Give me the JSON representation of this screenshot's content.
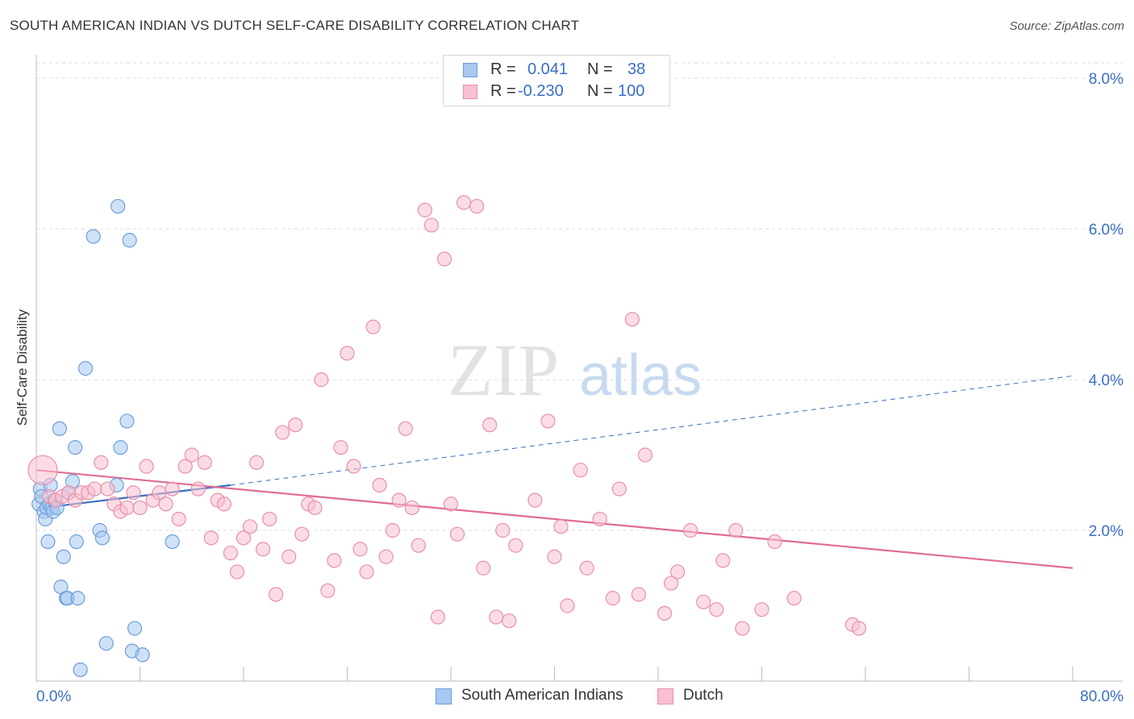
{
  "title": "SOUTH AMERICAN INDIAN VS DUTCH SELF-CARE DISABILITY CORRELATION CHART",
  "source": "Source: ZipAtlas.com",
  "watermark": {
    "zip": "ZIP",
    "atlas": "atlas"
  },
  "legend": {
    "rows": [
      {
        "r_label": "R =",
        "r_value": "0.041",
        "n_label": "N =",
        "n_value": "38",
        "color": "#a8c8f0",
        "border": "#6e9fd8"
      },
      {
        "r_label": "R =",
        "r_value": "-0.230",
        "n_label": "N =",
        "n_value": "100",
        "color": "#f8c0d0",
        "border": "#e890aa"
      }
    ]
  },
  "bottom_legend": [
    {
      "label": "South American Indians",
      "color": "#a8c8f0",
      "border": "#6e9fd8"
    },
    {
      "label": "Dutch",
      "color": "#f8c0d0",
      "border": "#e890aa"
    }
  ],
  "chart_data": {
    "type": "scatter",
    "title": "SOUTH AMERICAN INDIAN VS DUTCH SELF-CARE DISABILITY CORRELATION CHART",
    "xlabel": "",
    "ylabel": "Self-Care Disability",
    "xlim": [
      0,
      80
    ],
    "ylim": [
      0,
      8.2
    ],
    "x_tick_labels": [
      "0.0%",
      "80.0%"
    ],
    "y_ticks": [
      2,
      4,
      6,
      8
    ],
    "y_tick_labels": [
      "2.0%",
      "4.0%",
      "6.0%",
      "8.0%"
    ],
    "grid": true,
    "series": [
      {
        "name": "South American Indians",
        "color": "#a8c8f0",
        "border": "#6e9fd8",
        "points": [
          [
            0.2,
            2.35
          ],
          [
            0.3,
            2.55
          ],
          [
            0.4,
            2.45
          ],
          [
            0.6,
            2.25
          ],
          [
            0.7,
            2.15
          ],
          [
            0.8,
            2.3
          ],
          [
            0.9,
            1.85
          ],
          [
            1.0,
            2.35
          ],
          [
            1.1,
            2.6
          ],
          [
            1.2,
            2.3
          ],
          [
            1.3,
            2.25
          ],
          [
            1.4,
            2.4
          ],
          [
            1.6,
            2.3
          ],
          [
            1.8,
            3.35
          ],
          [
            1.9,
            1.25
          ],
          [
            2.1,
            1.65
          ],
          [
            2.3,
            1.1
          ],
          [
            2.4,
            1.1
          ],
          [
            2.5,
            2.5
          ],
          [
            2.8,
            2.65
          ],
          [
            3.0,
            3.1
          ],
          [
            3.1,
            1.85
          ],
          [
            3.2,
            1.1
          ],
          [
            3.4,
            0.15
          ],
          [
            3.8,
            4.15
          ],
          [
            4.4,
            5.9
          ],
          [
            4.9,
            2.0
          ],
          [
            5.1,
            1.9
          ],
          [
            5.4,
            0.5
          ],
          [
            6.2,
            2.6
          ],
          [
            6.3,
            6.3
          ],
          [
            6.5,
            3.1
          ],
          [
            7.0,
            3.45
          ],
          [
            7.2,
            5.85
          ],
          [
            7.4,
            0.4
          ],
          [
            7.6,
            0.7
          ],
          [
            8.2,
            0.35
          ],
          [
            10.5,
            1.85
          ]
        ],
        "trend": {
          "x": [
            0.5,
            15
          ],
          "y": [
            2.3,
            2.6
          ],
          "dashed_to": [
            80,
            4.05
          ]
        }
      },
      {
        "name": "Dutch",
        "color": "#f8c0d0",
        "border": "#e890aa",
        "points": [
          [
            0.5,
            2.8
          ],
          [
            1.0,
            2.45
          ],
          [
            1.5,
            2.4
          ],
          [
            2.0,
            2.45
          ],
          [
            2.5,
            2.5
          ],
          [
            3.0,
            2.4
          ],
          [
            3.5,
            2.5
          ],
          [
            4.0,
            2.5
          ],
          [
            4.5,
            2.55
          ],
          [
            5.0,
            2.9
          ],
          [
            5.5,
            2.55
          ],
          [
            6.0,
            2.35
          ],
          [
            6.5,
            2.25
          ],
          [
            7.0,
            2.3
          ],
          [
            7.5,
            2.5
          ],
          [
            8.0,
            2.3
          ],
          [
            8.5,
            2.85
          ],
          [
            9.0,
            2.4
          ],
          [
            9.5,
            2.5
          ],
          [
            10.0,
            2.35
          ],
          [
            10.5,
            2.55
          ],
          [
            11.0,
            2.15
          ],
          [
            11.5,
            2.85
          ],
          [
            12.0,
            3.0
          ],
          [
            12.5,
            2.55
          ],
          [
            13.0,
            2.9
          ],
          [
            13.5,
            1.9
          ],
          [
            14.0,
            2.4
          ],
          [
            14.5,
            2.35
          ],
          [
            15.0,
            1.7
          ],
          [
            15.5,
            1.45
          ],
          [
            16.0,
            1.9
          ],
          [
            16.5,
            2.05
          ],
          [
            17.0,
            2.9
          ],
          [
            17.5,
            1.75
          ],
          [
            18.0,
            2.15
          ],
          [
            18.5,
            1.15
          ],
          [
            19.0,
            3.3
          ],
          [
            19.5,
            1.65
          ],
          [
            20.0,
            3.4
          ],
          [
            20.5,
            1.95
          ],
          [
            21.0,
            2.35
          ],
          [
            21.5,
            2.3
          ],
          [
            22.0,
            4.0
          ],
          [
            22.5,
            1.2
          ],
          [
            23.0,
            1.6
          ],
          [
            23.5,
            3.1
          ],
          [
            24.0,
            4.35
          ],
          [
            24.5,
            2.85
          ],
          [
            25.0,
            1.75
          ],
          [
            25.5,
            1.45
          ],
          [
            26.0,
            4.7
          ],
          [
            26.5,
            2.6
          ],
          [
            27.0,
            1.65
          ],
          [
            27.5,
            2.0
          ],
          [
            28.0,
            2.4
          ],
          [
            28.5,
            3.35
          ],
          [
            29.0,
            2.3
          ],
          [
            29.5,
            1.8
          ],
          [
            30.0,
            6.25
          ],
          [
            30.5,
            6.05
          ],
          [
            31.0,
            0.85
          ],
          [
            31.5,
            5.6
          ],
          [
            32.0,
            2.35
          ],
          [
            32.5,
            1.95
          ],
          [
            33.0,
            6.35
          ],
          [
            34.0,
            6.3
          ],
          [
            34.5,
            1.5
          ],
          [
            35.0,
            3.4
          ],
          [
            35.5,
            0.85
          ],
          [
            36.0,
            2.0
          ],
          [
            36.5,
            0.8
          ],
          [
            37.0,
            1.8
          ],
          [
            38.5,
            2.4
          ],
          [
            39.5,
            3.45
          ],
          [
            40.0,
            1.65
          ],
          [
            40.5,
            2.05
          ],
          [
            41.0,
            1.0
          ],
          [
            42.0,
            2.8
          ],
          [
            42.5,
            1.5
          ],
          [
            43.5,
            2.15
          ],
          [
            44.5,
            1.1
          ],
          [
            45.0,
            2.55
          ],
          [
            46.0,
            4.8
          ],
          [
            46.5,
            1.15
          ],
          [
            47.0,
            3.0
          ],
          [
            48.5,
            0.9
          ],
          [
            49.0,
            1.3
          ],
          [
            49.5,
            1.45
          ],
          [
            50.5,
            2.0
          ],
          [
            51.5,
            1.05
          ],
          [
            52.5,
            0.95
          ],
          [
            53.0,
            1.6
          ],
          [
            54.0,
            2.0
          ],
          [
            54.5,
            0.7
          ],
          [
            56.0,
            0.95
          ],
          [
            57.0,
            1.85
          ],
          [
            58.5,
            1.1
          ],
          [
            63.0,
            0.75
          ],
          [
            63.5,
            0.7
          ]
        ],
        "trend": {
          "x": [
            0,
            80
          ],
          "y": [
            2.8,
            1.5
          ]
        }
      }
    ]
  }
}
